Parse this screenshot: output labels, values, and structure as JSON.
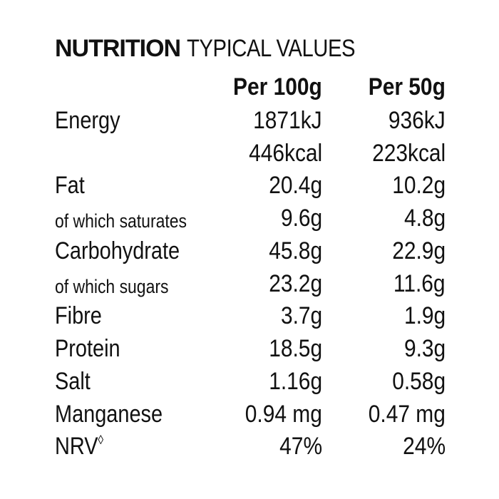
{
  "title_bold": "NUTRITION",
  "title_rest": "TYPICAL VALUES",
  "columns": [
    "Per 100g",
    "Per 50g"
  ],
  "rows": [
    {
      "name": "Energy",
      "v100": "1871kJ",
      "v50": "936kJ"
    },
    {
      "name": "",
      "v100": "446kcal",
      "v50": "223kcal"
    },
    {
      "name": "Fat",
      "v100": "20.4g",
      "v50": "10.2g"
    },
    {
      "name": "of which saturates",
      "v100": "9.6g",
      "v50": "4.8g"
    },
    {
      "name": "Carbohydrate",
      "v100": "45.8g",
      "v50": "22.9g"
    },
    {
      "name": "of which sugars",
      "v100": "23.2g",
      "v50": "11.6g"
    },
    {
      "name": "Fibre",
      "v100": "3.7g",
      "v50": "1.9g"
    },
    {
      "name": "Protein",
      "v100": "18.5g",
      "v50": "9.3g"
    },
    {
      "name": "Salt",
      "v100": "1.16g",
      "v50": "0.58g"
    },
    {
      "name": "Manganese",
      "v100": "0.94 mg",
      "v50": "0.47 mg"
    },
    {
      "name": "NRV",
      "name_mark": "◊",
      "v100": "47%",
      "v50": "24%"
    }
  ]
}
